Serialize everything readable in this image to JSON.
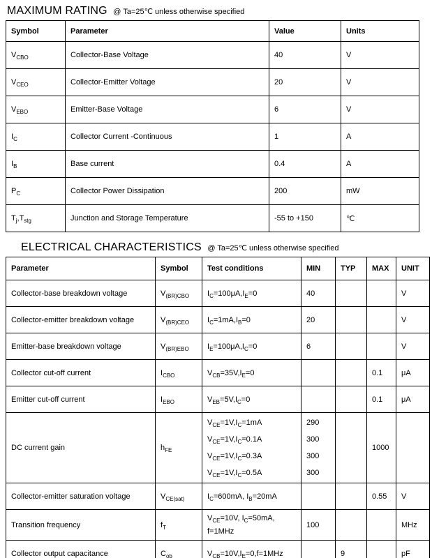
{
  "max_rating": {
    "title": "MAXIMUM RATING",
    "note": "@ Ta=25℃ unless otherwise specified",
    "headers": [
      "Symbol",
      "Parameter",
      "Value",
      "Units"
    ],
    "rows": [
      {
        "symbol": "V~CBO~",
        "parameter": "Collector-Base Voltage",
        "value": "40",
        "units": "V"
      },
      {
        "symbol": "V~CEO~",
        "parameter": "Collector-Emitter Voltage",
        "value": "20",
        "units": "V"
      },
      {
        "symbol": "V~EBO~",
        "parameter": "Emitter-Base Voltage",
        "value": "6",
        "units": "V"
      },
      {
        "symbol": "I~C~",
        "parameter": "Collector Current -Continuous",
        "value": "1",
        "units": "A"
      },
      {
        "symbol": "I~B~",
        "parameter": "Base current",
        "value": "0.4",
        "units": "A"
      },
      {
        "symbol": "P~C~",
        "parameter": "Collector Power Dissipation",
        "value": "200",
        "units": "mW"
      },
      {
        "symbol": "T~j~,T~stg~",
        "parameter": "Junction and Storage Temperature",
        "value": "-55 to +150",
        "units": "℃"
      }
    ]
  },
  "electrical": {
    "title": "ELECTRICAL CHARACTERISTICS",
    "note": "@ Ta=25℃ unless otherwise specified",
    "headers": [
      "Parameter",
      "Symbol",
      "Test conditions",
      "MIN",
      "TYP",
      "MAX",
      "UNIT"
    ],
    "rows": [
      {
        "parameter": "Collector-base breakdown voltage",
        "symbol": "V~(BR)CBO~",
        "conditions": "I~C~=100μA,I~E~=0",
        "min": "40",
        "typ": "",
        "max": "",
        "unit": "V"
      },
      {
        "parameter": "Collector-emitter breakdown voltage",
        "symbol": "V~(BR)CEO~",
        "conditions": "I~C~=1mA,I~B~=0",
        "min": "20",
        "typ": "",
        "max": "",
        "unit": "V"
      },
      {
        "parameter": "Emitter-base breakdown voltage",
        "symbol": "V~(BR)EBO~",
        "conditions": "I~E~=100μA,I~C~=0",
        "min": "6",
        "typ": "",
        "max": "",
        "unit": "V"
      },
      {
        "parameter": "Collector cut-off current",
        "symbol": "I~CBO~",
        "conditions": "V~CB~=35V,I~E~=0",
        "min": "",
        "typ": "",
        "max": "0.1",
        "unit": "μA"
      },
      {
        "parameter": "Emitter cut-off current",
        "symbol": "I~EBO~",
        "conditions": "V~EB~=5V,I~C~=0",
        "min": "",
        "typ": "",
        "max": "0.1",
        "unit": "μA"
      },
      {
        "parameter": "DC current gain",
        "symbol": "h~FE~",
        "conditions": [
          "V~CE~=1V,I~C~=1mA",
          "V~CE~=1V,I~C~=0.1A",
          "V~CE~=1V,I~C~=0.3A",
          "V~CE~=1V,I~C~=0.5A"
        ],
        "min": [
          "290",
          "300",
          "300",
          "300"
        ],
        "typ": "",
        "max": "1000",
        "unit": ""
      },
      {
        "parameter": "Collector-emitter saturation voltage",
        "symbol": "V~CE(sat)~",
        "conditions": "I~C~=600mA, I~B~=20mA",
        "min": "",
        "typ": "",
        "max": "0.55",
        "unit": "V"
      },
      {
        "parameter": "Transition frequency",
        "symbol": "f~T~",
        "conditions": [
          "V~CE~=10V, I~C~=50mA,",
          "f=1MHz"
        ],
        "min": "100",
        "typ": "",
        "max": "",
        "unit": "MHz"
      },
      {
        "parameter": "Collector output capacitance",
        "symbol": "C~ob~",
        "conditions": "V~CB~=10V,I~E~=0,f=1MHz",
        "min": "",
        "typ": "9",
        "max": "",
        "unit": "pF"
      }
    ]
  }
}
